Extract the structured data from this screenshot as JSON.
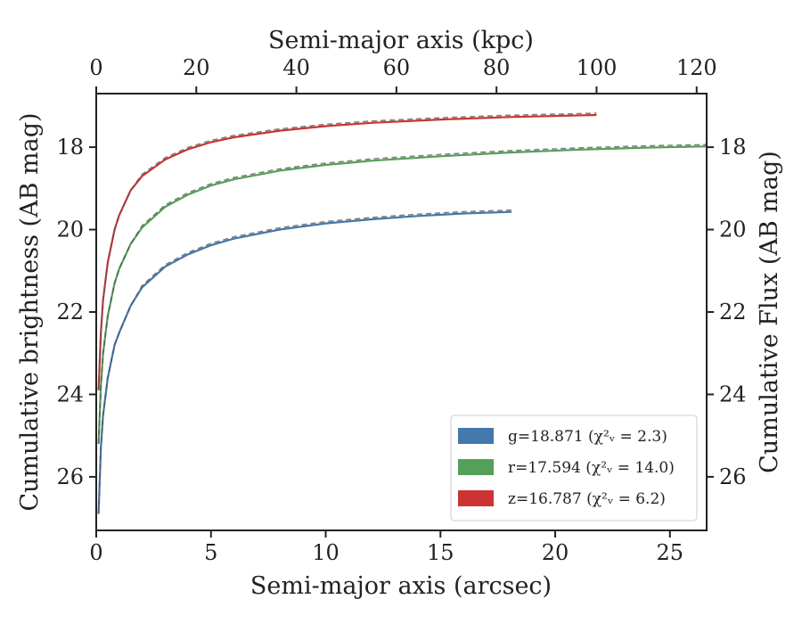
{
  "chart_data": {
    "type": "line",
    "xlabel": "Semi-major axis (arcsec)",
    "x2label": "Semi-major axis (kpc)",
    "ylabel": "Cumulative brightness (AB mag)",
    "y2label": "Cumulative Flux (AB mag)",
    "xlim": [
      0,
      26.6
    ],
    "x2lim": [
      0,
      122.0
    ],
    "ylim": [
      27.3,
      16.7
    ],
    "y_inverted": true,
    "x_ticks": [
      "0",
      "5",
      "10",
      "15",
      "20",
      "25"
    ],
    "x2_ticks": [
      "0",
      "20",
      "40",
      "60",
      "80",
      "100",
      "120"
    ],
    "y_ticks": [
      "18",
      "20",
      "22",
      "24",
      "26"
    ],
    "y2_ticks": [
      "18",
      "20",
      "22",
      "24",
      "26"
    ],
    "legend_position": "lower right",
    "series": [
      {
        "name": "g=18.871",
        "chi_label": "(χ²ᵥ = 2.3)",
        "color": "#4477aa",
        "x": [
          0.1,
          0.2,
          0.3,
          0.5,
          0.8,
          1.0,
          1.5,
          2.0,
          3.0,
          4.0,
          5.0,
          6.0,
          8.0,
          10.0,
          12.0,
          14.0,
          16.0,
          18.1
        ],
        "y": [
          26.9,
          25.3,
          24.5,
          23.6,
          22.8,
          22.5,
          21.85,
          21.4,
          20.9,
          20.6,
          20.38,
          20.22,
          20.0,
          19.85,
          19.75,
          19.67,
          19.61,
          19.57
        ]
      },
      {
        "name": "r=17.594",
        "chi_label": "(χ²ᵥ = 14.0)",
        "color": "#55a058",
        "x": [
          0.1,
          0.2,
          0.3,
          0.5,
          0.8,
          1.0,
          1.5,
          2.0,
          3.0,
          4.0,
          5.0,
          6.0,
          8.0,
          10.0,
          12.0,
          15.0,
          18.0,
          21.0,
          24.0,
          26.6
        ],
        "y": [
          25.2,
          23.8,
          23.0,
          22.1,
          21.3,
          20.95,
          20.35,
          19.95,
          19.45,
          19.15,
          18.93,
          18.78,
          18.57,
          18.43,
          18.33,
          18.22,
          18.13,
          18.06,
          18.01,
          17.98
        ]
      },
      {
        "name": "z=16.787",
        "chi_label": "(χ²ᵥ = 6.2)",
        "color": "#cc3333",
        "x": [
          0.1,
          0.2,
          0.3,
          0.5,
          0.8,
          1.0,
          1.5,
          2.0,
          3.0,
          4.0,
          5.0,
          6.0,
          8.0,
          10.0,
          12.0,
          15.0,
          18.0,
          21.8
        ],
        "y": [
          23.9,
          22.5,
          21.7,
          20.8,
          20.0,
          19.65,
          19.05,
          18.7,
          18.3,
          18.05,
          17.88,
          17.76,
          17.6,
          17.49,
          17.41,
          17.33,
          17.27,
          17.22
        ]
      }
    ]
  }
}
